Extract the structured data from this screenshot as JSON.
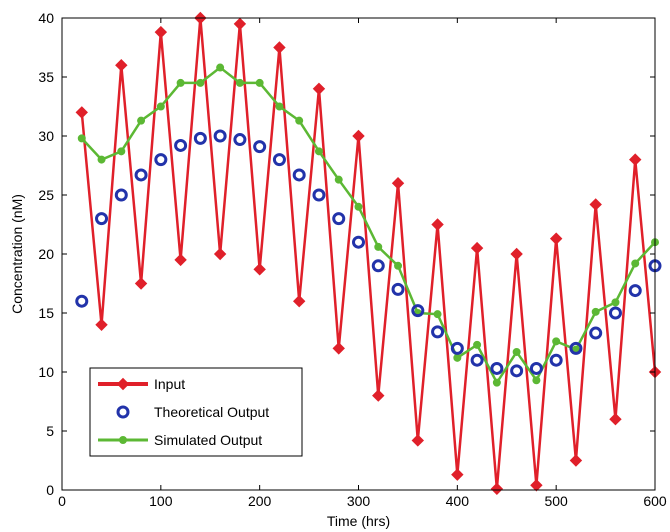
{
  "chart_data": {
    "type": "line",
    "xlabel": "Time (hrs)",
    "ylabel": "Concentration (nM)",
    "xlim": [
      0,
      600
    ],
    "ylim": [
      0,
      40
    ],
    "xticks": [
      0,
      100,
      200,
      300,
      400,
      500,
      600
    ],
    "yticks": [
      0,
      5,
      10,
      15,
      20,
      25,
      30,
      35,
      40
    ],
    "grid": false,
    "legend_position": "bottom-left",
    "series": [
      {
        "name": "Input",
        "color": "#e0202a",
        "marker": "diamond",
        "x": [
          20,
          40,
          60,
          80,
          100,
          120,
          140,
          160,
          180,
          200,
          220,
          240,
          260,
          280,
          300,
          320,
          340,
          360,
          380,
          400,
          420,
          440,
          460,
          480,
          500,
          520,
          540,
          560,
          580,
          600
        ],
        "y": [
          32,
          14,
          36,
          17.5,
          38.8,
          19.5,
          40,
          20,
          39.5,
          18.7,
          37.5,
          16,
          34,
          12,
          30,
          8,
          26,
          4.2,
          22.5,
          1.3,
          20.5,
          0.1,
          20,
          0.4,
          21.3,
          2.5,
          24.2,
          6,
          28,
          10
        ]
      },
      {
        "name": "Theoretical Output",
        "color": "#2233aa",
        "marker": "circle",
        "x": [
          20,
          40,
          60,
          80,
          100,
          120,
          140,
          160,
          180,
          200,
          220,
          240,
          260,
          280,
          300,
          320,
          340,
          360,
          380,
          400,
          420,
          440,
          460,
          480,
          500,
          520,
          540,
          560,
          580,
          600
        ],
        "y": [
          16,
          23,
          25,
          26.7,
          28,
          29.2,
          29.8,
          30,
          29.7,
          29.1,
          28,
          26.7,
          25,
          23,
          21,
          19,
          17,
          15.2,
          13.4,
          12,
          11,
          10.3,
          10.1,
          10.3,
          11,
          12,
          13.3,
          15,
          16.9,
          19
        ]
      },
      {
        "name": "Simulated Output",
        "color": "#5cb834",
        "marker": "dot",
        "x": [
          20,
          40,
          60,
          80,
          100,
          120,
          140,
          160,
          180,
          200,
          220,
          240,
          260,
          280,
          300,
          320,
          340,
          360,
          380,
          400,
          420,
          440,
          460,
          480,
          500,
          520,
          540,
          560,
          580,
          600
        ],
        "y": [
          29.8,
          28,
          28.7,
          31.3,
          32.5,
          34.5,
          34.5,
          35.8,
          34.5,
          34.5,
          32.5,
          31.3,
          28.7,
          26.3,
          24,
          20.6,
          19,
          15,
          14.9,
          11.2,
          12.3,
          9.1,
          11.7,
          9.3,
          12.6,
          11.9,
          15.1,
          15.9,
          19.2,
          21
        ]
      }
    ]
  }
}
